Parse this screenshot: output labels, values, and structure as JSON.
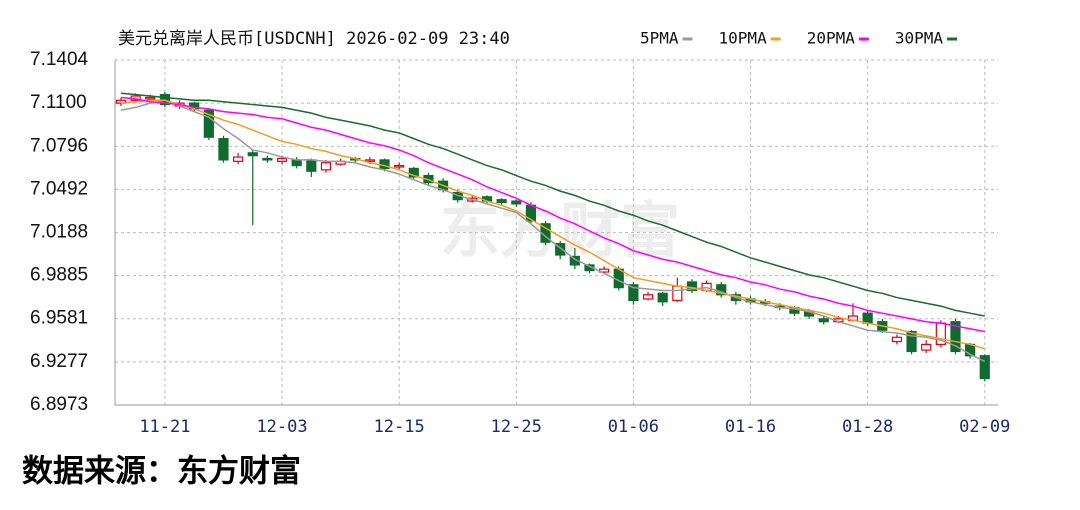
{
  "chart_data": {
    "type": "candlestick",
    "title": "美元兑离岸人民币[USDCNH] 2026-02-09 23:40",
    "watermark": "东方财富",
    "source": "数据来源：东方财富",
    "categories": [
      null,
      null,
      null,
      "11-21",
      null,
      null,
      null,
      null,
      null,
      null,
      null,
      "12-03",
      null,
      null,
      null,
      null,
      null,
      null,
      null,
      "12-15",
      null,
      null,
      null,
      null,
      null,
      null,
      null,
      "12-25",
      null,
      null,
      null,
      null,
      null,
      null,
      null,
      "01-06",
      null,
      null,
      null,
      null,
      null,
      null,
      null,
      "01-16",
      null,
      null,
      null,
      null,
      null,
      null,
      null,
      "01-28",
      null,
      null,
      null,
      null,
      null,
      null,
      null,
      "02-09"
    ],
    "open": [
      7.11,
      7.112,
      7.113,
      7.116,
      7.108,
      7.11,
      7.105,
      7.085,
      7.069,
      7.075,
      7.071,
      7.069,
      7.07,
      7.07,
      7.063,
      7.067,
      7.071,
      7.069,
      7.07,
      7.065,
      7.064,
      7.059,
      7.055,
      7.047,
      7.041,
      7.044,
      7.042,
      7.041,
      7.038,
      7.025,
      7.011,
      7.002,
      6.996,
      6.991,
      6.993,
      6.982,
      6.972,
      6.976,
      6.971,
      6.984,
      6.978,
      6.982,
      6.975,
      6.972,
      6.97,
      6.967,
      6.966,
      6.963,
      6.958,
      6.956,
      6.957,
      6.962,
      6.956,
      6.942,
      6.949,
      6.936,
      6.94,
      6.956,
      6.94,
      6.932
    ],
    "high": [
      7.114,
      7.117,
      7.116,
      7.118,
      7.112,
      7.111,
      7.106,
      7.087,
      7.075,
      7.077,
      7.073,
      7.073,
      7.072,
      7.071,
      7.07,
      7.071,
      7.072,
      7.072,
      7.071,
      7.068,
      7.065,
      7.061,
      7.057,
      7.049,
      7.045,
      7.045,
      7.043,
      7.042,
      7.04,
      7.027,
      7.013,
      7.008,
      6.997,
      6.995,
      6.995,
      6.984,
      6.977,
      6.977,
      6.987,
      6.986,
      6.985,
      6.984,
      6.977,
      6.974,
      6.972,
      6.969,
      6.967,
      6.965,
      6.96,
      6.96,
      6.969,
      6.964,
      6.958,
      6.947,
      6.95,
      6.943,
      6.957,
      6.958,
      6.941,
      6.933
    ],
    "low": [
      7.108,
      7.111,
      7.112,
      7.107,
      7.106,
      7.104,
      7.084,
      7.068,
      7.067,
      7.024,
      7.068,
      7.067,
      7.064,
      7.058,
      7.061,
      7.066,
      7.068,
      7.067,
      7.062,
      7.063,
      7.056,
      7.052,
      7.047,
      7.04,
      7.04,
      7.039,
      7.038,
      7.037,
      7.025,
      7.01,
      7.0,
      6.993,
      6.99,
      6.99,
      6.978,
      6.968,
      6.971,
      6.967,
      6.97,
      6.976,
      6.977,
      6.973,
      6.968,
      6.968,
      6.967,
      6.964,
      6.96,
      6.958,
      6.954,
      6.955,
      6.956,
      6.953,
      6.948,
      6.94,
      6.933,
      6.934,
      6.938,
      6.933,
      6.93,
      6.914
    ],
    "close": [
      7.112,
      7.115,
      7.114,
      7.109,
      7.11,
      7.106,
      7.086,
      7.07,
      7.072,
      7.073,
      7.07,
      7.071,
      7.066,
      7.062,
      7.068,
      7.069,
      7.07,
      7.07,
      7.064,
      7.066,
      7.058,
      7.054,
      7.049,
      7.042,
      7.043,
      7.041,
      7.04,
      7.039,
      7.027,
      7.012,
      7.003,
      6.996,
      6.992,
      6.993,
      6.98,
      6.971,
      6.975,
      6.97,
      6.981,
      6.978,
      6.983,
      6.975,
      6.971,
      6.97,
      6.969,
      6.966,
      6.962,
      6.96,
      6.956,
      6.958,
      6.96,
      6.955,
      6.95,
      6.945,
      6.935,
      6.94,
      6.955,
      6.935,
      6.932,
      6.916
    ],
    "up_color": "#e60012",
    "down_color": "#0f6b2f",
    "series": [
      {
        "name": "5PMA",
        "color": "#9a9a9a",
        "values": [
          7.105,
          7.107,
          7.11,
          7.112,
          7.108,
          7.104,
          7.1,
          7.092,
          7.085,
          7.077,
          7.075,
          7.072,
          7.07,
          7.07,
          7.069,
          7.069,
          7.068,
          7.065,
          7.063,
          7.06,
          7.056,
          7.052,
          7.049,
          7.045,
          7.042,
          7.039,
          7.036,
          7.033,
          7.025,
          7.016,
          7.008,
          7.0,
          6.995,
          6.99,
          6.985,
          6.98,
          6.979,
          6.978,
          6.978,
          6.979,
          6.98,
          6.977,
          6.973,
          6.97,
          6.968,
          6.966,
          6.965,
          6.963,
          6.96,
          6.956,
          6.953,
          6.95,
          6.949,
          6.948,
          6.946,
          6.945,
          6.943,
          6.939,
          6.933,
          6.928
        ]
      },
      {
        "name": "10PMA",
        "color": "#f0a020",
        "values": [
          7.11,
          7.111,
          7.112,
          7.112,
          7.109,
          7.106,
          7.102,
          7.098,
          7.095,
          7.091,
          7.087,
          7.083,
          7.081,
          7.078,
          7.076,
          7.073,
          7.071,
          7.068,
          7.066,
          7.063,
          7.059,
          7.056,
          7.052,
          7.048,
          7.045,
          7.041,
          7.038,
          7.034,
          7.028,
          7.022,
          7.016,
          7.01,
          7.005,
          6.999,
          6.993,
          6.987,
          6.985,
          6.983,
          6.981,
          6.98,
          6.978,
          6.976,
          6.974,
          6.972,
          6.97,
          6.968,
          6.966,
          6.964,
          6.962,
          6.959,
          6.957,
          6.955,
          6.953,
          6.951,
          6.948,
          6.946,
          6.944,
          6.942,
          6.94,
          6.937
        ]
      },
      {
        "name": "20PMA",
        "color": "#ff00ff",
        "values": [
          7.114,
          7.113,
          7.111,
          7.11,
          7.109,
          7.107,
          7.106,
          7.104,
          7.103,
          7.102,
          7.1,
          7.099,
          7.096,
          7.093,
          7.091,
          7.088,
          7.085,
          7.082,
          7.08,
          7.077,
          7.073,
          7.068,
          7.064,
          7.06,
          7.056,
          7.051,
          7.047,
          7.043,
          7.038,
          7.034,
          7.029,
          7.025,
          7.02,
          7.015,
          7.011,
          7.006,
          7.003,
          7.0,
          6.998,
          6.995,
          6.992,
          6.989,
          6.987,
          6.984,
          6.982,
          6.979,
          6.977,
          6.974,
          6.972,
          6.969,
          6.967,
          6.964,
          6.962,
          6.96,
          6.958,
          6.956,
          6.955,
          6.953,
          6.951,
          6.949
        ]
      },
      {
        "name": "30PMA",
        "color": "#1a6b2e",
        "values": [
          7.117,
          7.116,
          7.115,
          7.114,
          7.113,
          7.112,
          7.112,
          7.111,
          7.11,
          7.109,
          7.108,
          7.107,
          7.105,
          7.103,
          7.1,
          7.098,
          7.096,
          7.094,
          7.091,
          7.089,
          7.085,
          7.081,
          7.078,
          7.074,
          7.07,
          7.066,
          7.063,
          7.059,
          7.055,
          7.052,
          7.048,
          7.045,
          7.041,
          7.038,
          7.034,
          7.031,
          7.027,
          7.024,
          7.02,
          7.016,
          7.012,
          7.009,
          7.005,
          7.001,
          6.998,
          6.995,
          6.992,
          6.989,
          6.987,
          6.984,
          6.981,
          6.978,
          6.976,
          6.973,
          6.971,
          6.969,
          6.967,
          6.964,
          6.962,
          6.96
        ]
      }
    ],
    "ylim": [
      6.8973,
      7.1404
    ],
    "yticks": [
      7.1404,
      {
        "value": 7.11,
        "label": "7.1100"
      },
      7.0796,
      7.0492,
      7.0188,
      6.9885,
      6.9581,
      6.9277,
      6.8973
    ],
    "grid": true
  }
}
